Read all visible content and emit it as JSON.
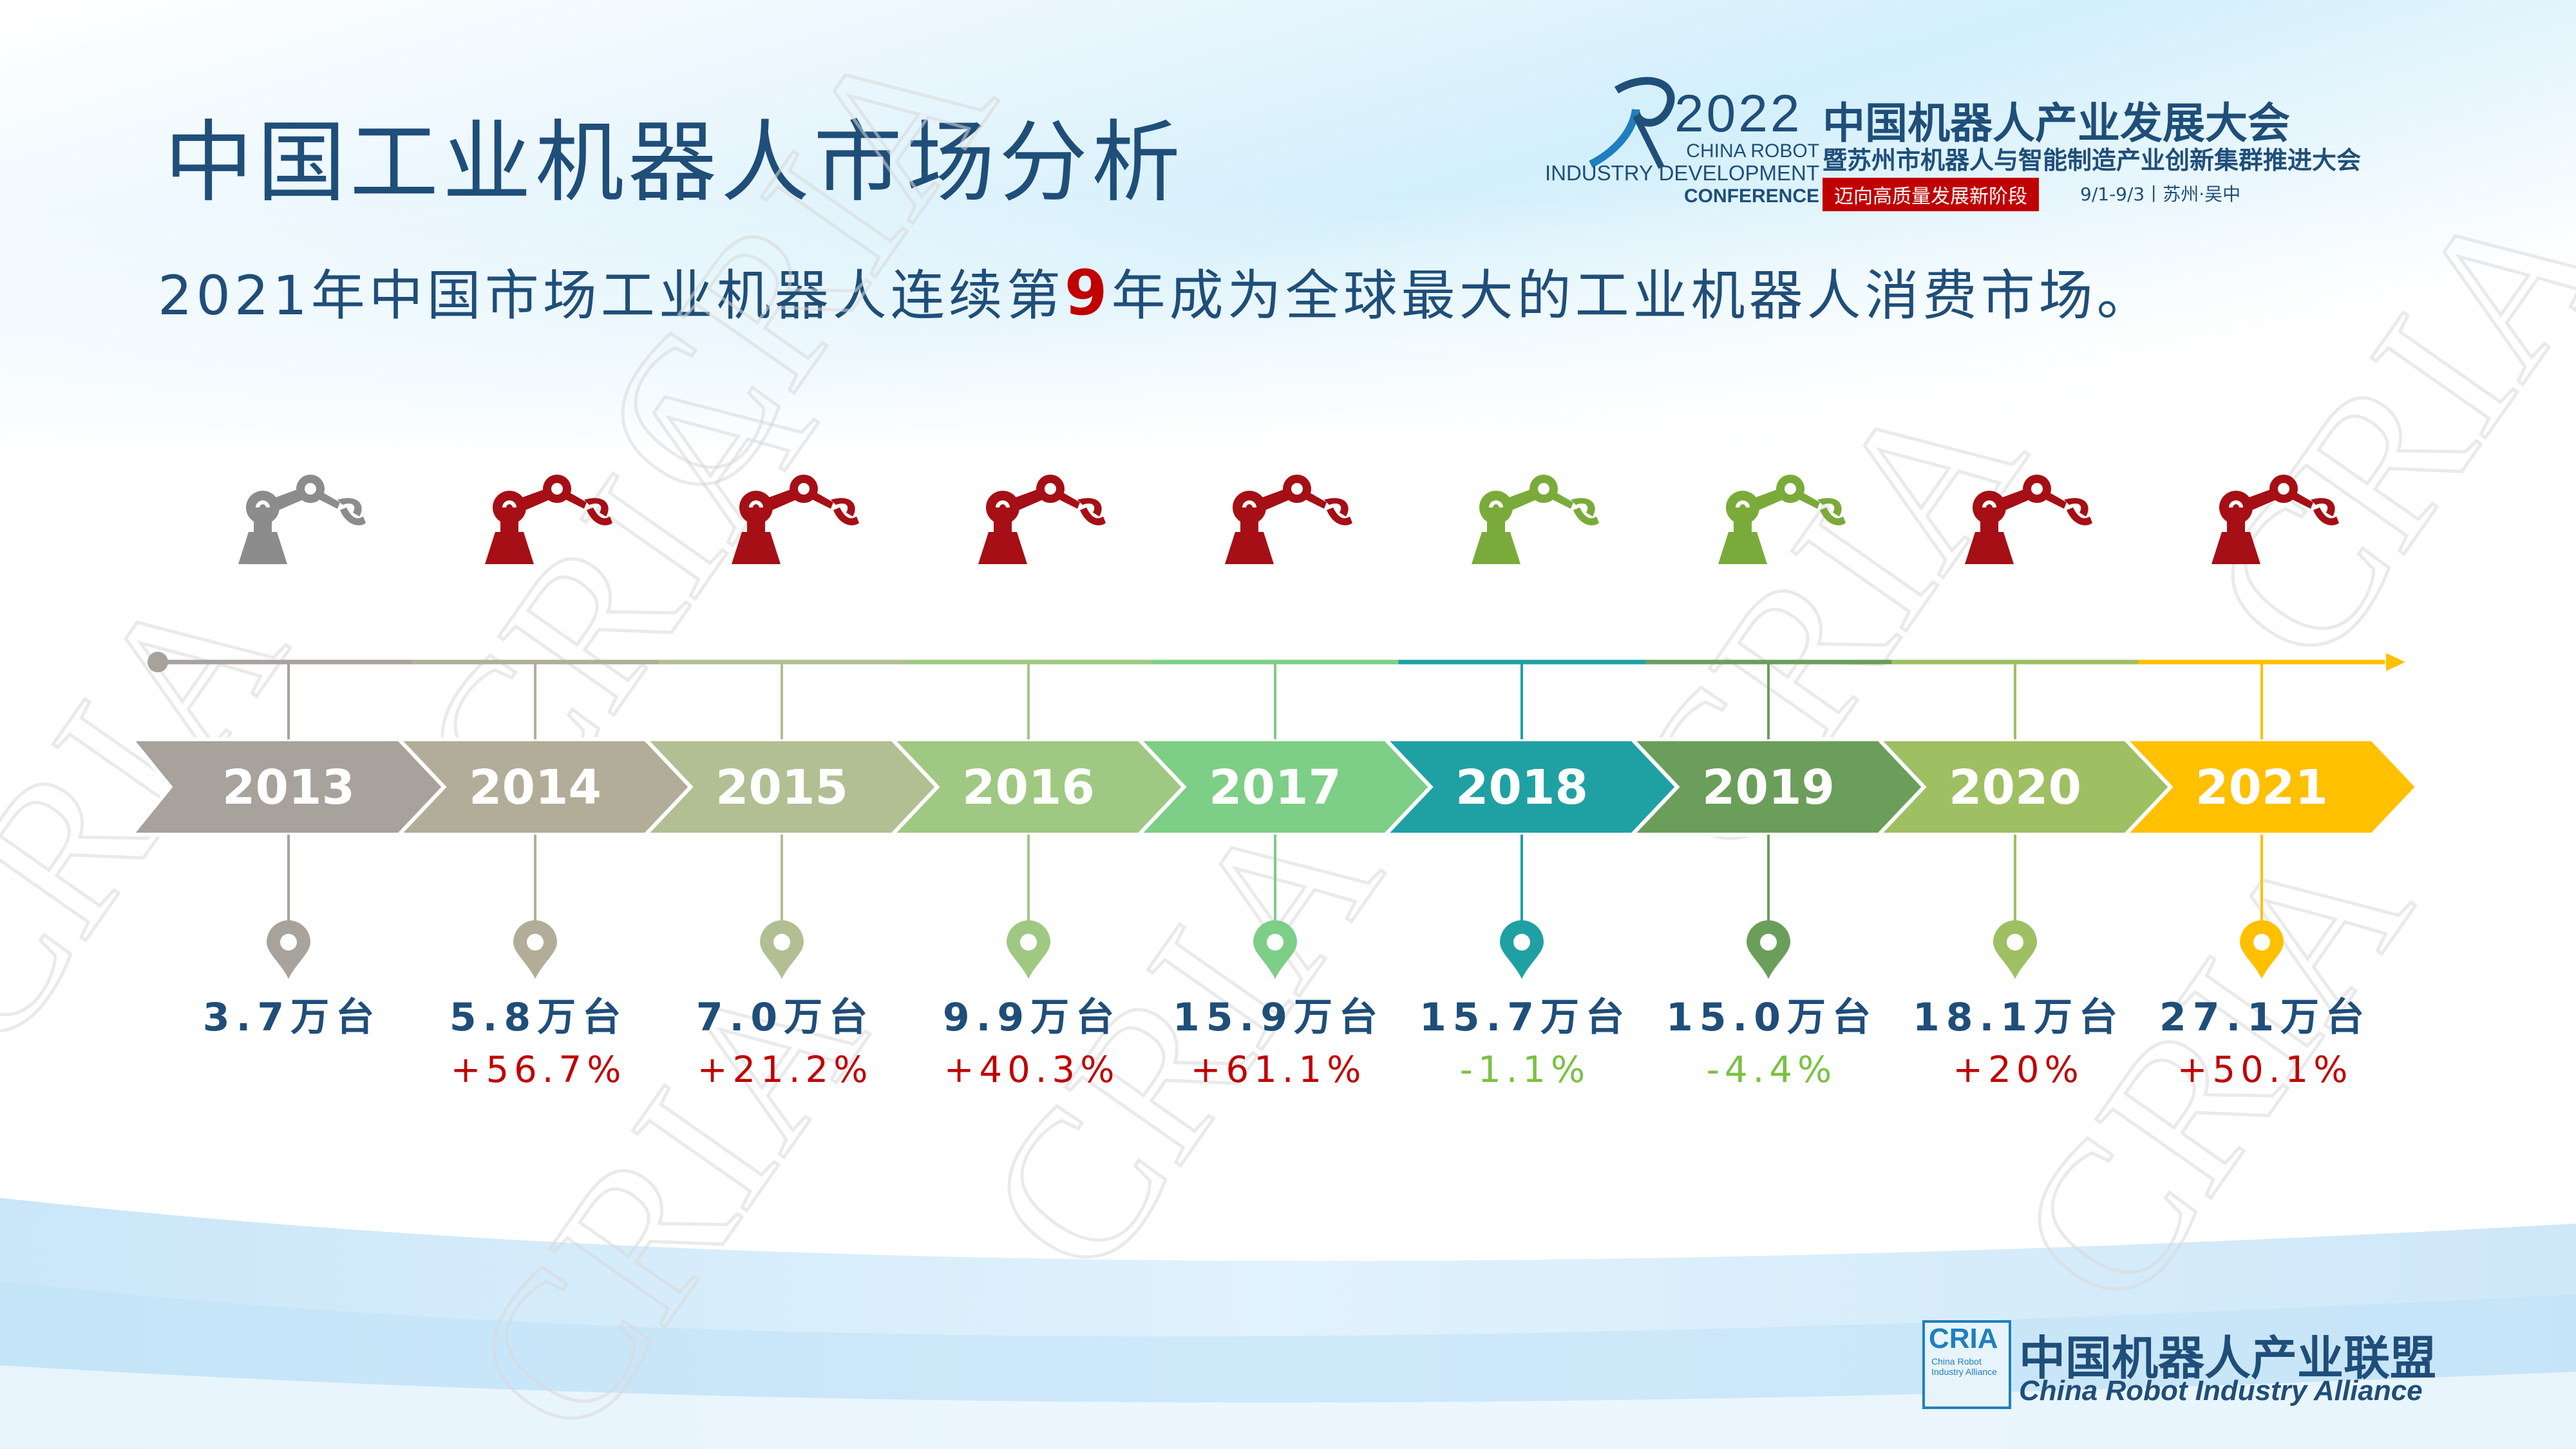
{
  "title": "中国工业机器人市场分析",
  "subtitle_pre": "2021年中国市场工业机器人连续第",
  "subtitle_highlight": "9",
  "subtitle_post": "年成为全球最大的工业机器人消费市场。",
  "conference": {
    "year": "2022",
    "cn_title": "中国机器人产业发展大会",
    "cn_subtitle": "暨苏州市机器人与智能制造产业创新集群推进大会",
    "en_line1": "CHINA ROBOT",
    "en_line2": "INDUSTRY DEVELOPMENT",
    "en_line3": "CONFERENCE",
    "tagline": "迈向高质量发展新阶段",
    "dates": "9/1-9/3丨苏州·吴中"
  },
  "alliance": {
    "abbr": "CRIA",
    "abbr_sub": "China Robot Industry Alliance",
    "cn_name": "中国机器人产业联盟",
    "en_name": "China Robot Industry Alliance"
  },
  "watermark": "CRIA",
  "chart_data": {
    "type": "timeline",
    "unit": "万台",
    "years": [
      "2013",
      "2014",
      "2015",
      "2016",
      "2017",
      "2018",
      "2019",
      "2020",
      "2021"
    ],
    "values": [
      3.7,
      5.8,
      7.0,
      9.9,
      15.9,
      15.7,
      15.0,
      18.1,
      27.1
    ],
    "value_labels": [
      "3.7万台",
      "5.8万台",
      "7.0万台",
      "9.9万台",
      "15.9万台",
      "15.7万台",
      "15.0万台",
      "18.1万台",
      "27.1万台"
    ],
    "growth_labels": [
      "",
      "+56.7%",
      "+21.2%",
      "+40.3%",
      "+61.1%",
      "-1.1%",
      "-4.4%",
      "+20%",
      "+50.1%"
    ],
    "arrow_colors": [
      "#a8a29c",
      "#b2ad98",
      "#b2bf93",
      "#9fc882",
      "#7dce86",
      "#1fa1a4",
      "#6b9e5a",
      "#9ec062",
      "#ffc000"
    ],
    "robot_colors": [
      "#8c8c8c",
      "#a50f15",
      "#a50f15",
      "#a50f15",
      "#a50f15",
      "#7aab3a",
      "#7aab3a",
      "#a50f15",
      "#a50f15"
    ],
    "growth_colors": {
      "positive": "#c00000",
      "negative": "#7ac143"
    },
    "value_label_color": "#1f4e79"
  }
}
